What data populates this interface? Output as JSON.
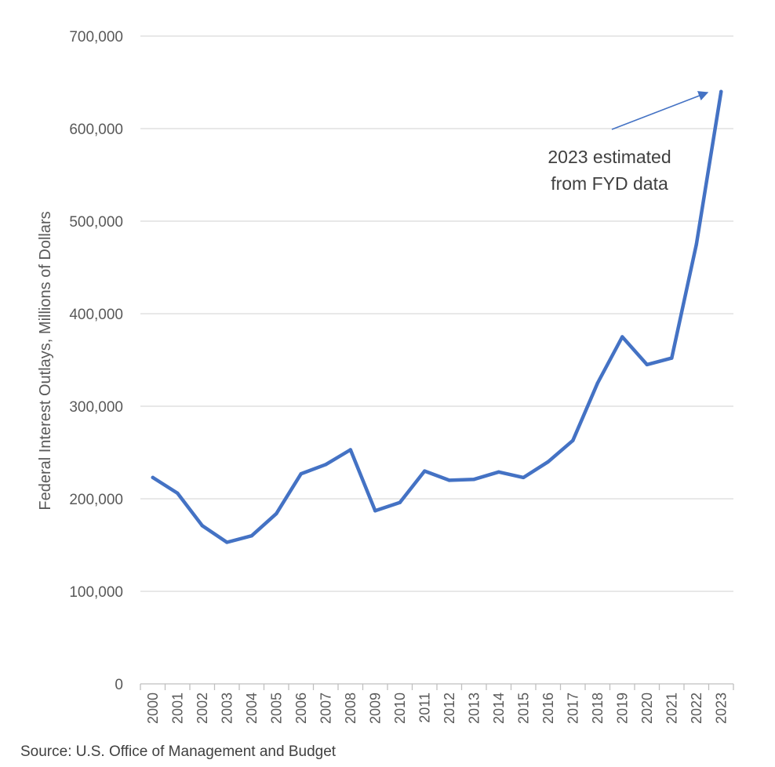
{
  "chart_data": {
    "type": "line",
    "ylabel": "Federal Interest Outlays, Millions of Dollars",
    "xlabel": "",
    "ylim": [
      0,
      700000
    ],
    "yticks": [
      0,
      100000,
      200000,
      300000,
      400000,
      500000,
      600000,
      700000
    ],
    "ytick_labels": [
      "0",
      "100,000",
      "200,000",
      "300,000",
      "400,000",
      "500,000",
      "600,000",
      "700,000"
    ],
    "grid": true,
    "categories": [
      "2000",
      "2001",
      "2002",
      "2003",
      "2004",
      "2005",
      "2006",
      "2007",
      "2008",
      "2009",
      "2010",
      "2011",
      "2012",
      "2013",
      "2014",
      "2015",
      "2016",
      "2017",
      "2018",
      "2019",
      "2020",
      "2021",
      "2022",
      "2023"
    ],
    "series": [
      {
        "name": "Federal Interest Outlays",
        "color": "#4472c4",
        "values": [
          223000,
          206000,
          171000,
          153000,
          160000,
          184000,
          227000,
          237000,
          253000,
          187000,
          196000,
          230000,
          220000,
          221000,
          229000,
          223000,
          240000,
          263000,
          325000,
          375000,
          345000,
          352000,
          475000,
          640000
        ]
      }
    ],
    "annotation": {
      "lines": [
        "2023 estimated",
        "from FYD data"
      ],
      "arrow_color": "#4472c4"
    },
    "source": "Source: U.S. Office of Management and Budget"
  }
}
